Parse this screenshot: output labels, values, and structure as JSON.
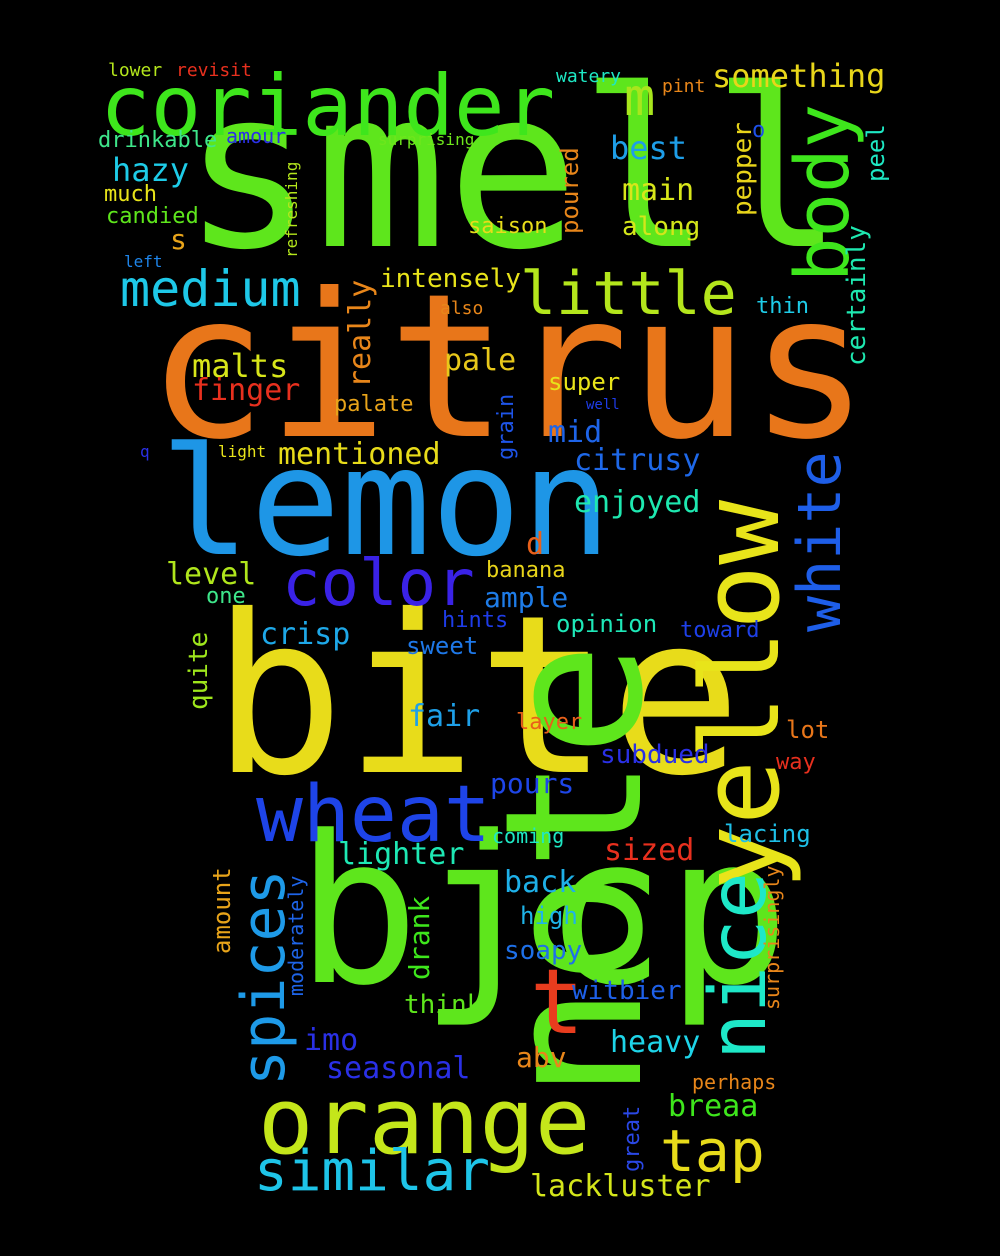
{
  "words": [
    {
      "t": "smell",
      "c": "#5ee61c"
    },
    {
      "t": "citrus",
      "c": "#e8761a"
    },
    {
      "t": "lemon",
      "c": "#1e96e6"
    },
    {
      "t": "bite",
      "c": "#e8dc1a"
    },
    {
      "t": "bjcp",
      "c": "#5ee61c"
    },
    {
      "t": "note",
      "c": "#5ee61c"
    },
    {
      "t": "yellow",
      "c": "#e8e41a"
    },
    {
      "t": "coriander",
      "c": "#3ee61c"
    },
    {
      "t": "orange",
      "c": "#c4e61a"
    },
    {
      "t": "wheat",
      "c": "#1e44e8"
    },
    {
      "t": "color",
      "c": "#3a22e6"
    },
    {
      "t": "medium",
      "c": "#1ec8e8"
    },
    {
      "t": "little",
      "c": "#b4e61c"
    },
    {
      "t": "body",
      "c": "#3ee61c"
    },
    {
      "t": "white",
      "c": "#1e5ee8"
    },
    {
      "t": "nice",
      "c": "#1ee8c8"
    },
    {
      "t": "spices",
      "c": "#1e9ae8"
    },
    {
      "t": "similar",
      "c": "#1ec4e8"
    },
    {
      "t": "tap",
      "c": "#e8dc1a"
    },
    {
      "t": "t",
      "c": "#e83c1e"
    },
    {
      "t": "m",
      "c": "#a8e61c"
    },
    {
      "t": "something",
      "c": "#e8d61a"
    },
    {
      "t": "best",
      "c": "#1e9ee8"
    },
    {
      "t": "main",
      "c": "#d8e61a"
    },
    {
      "t": "along",
      "c": "#d4e61a"
    },
    {
      "t": "hazy",
      "c": "#1ecce8"
    },
    {
      "t": "malts",
      "c": "#d8e61a"
    },
    {
      "t": "finger",
      "c": "#e8301e"
    },
    {
      "t": "really",
      "c": "#e8861a"
    },
    {
      "t": "intensely",
      "c": "#e8e41a"
    },
    {
      "t": "pale",
      "c": "#e8c81a"
    },
    {
      "t": "palate",
      "c": "#e8a41a"
    },
    {
      "t": "mentioned",
      "c": "#e8dc1a"
    },
    {
      "t": "super",
      "c": "#e8e41a"
    },
    {
      "t": "mid",
      "c": "#1e64e8"
    },
    {
      "t": "citrusy",
      "c": "#1e68e8"
    },
    {
      "t": "enjoyed",
      "c": "#1ee8b0"
    },
    {
      "t": "level",
      "c": "#b0e61c"
    },
    {
      "t": "one",
      "c": "#3ee68a"
    },
    {
      "t": "ample",
      "c": "#1e7ce8"
    },
    {
      "t": "banana",
      "c": "#e8d41a"
    },
    {
      "t": "crisp",
      "c": "#1ea8e8"
    },
    {
      "t": "sweet",
      "c": "#1e78e8"
    },
    {
      "t": "opinion",
      "c": "#1ee8b8"
    },
    {
      "t": "toward",
      "c": "#1e40e8"
    },
    {
      "t": "hints",
      "c": "#1e3ce8"
    },
    {
      "t": "quite",
      "c": "#9ee61c"
    },
    {
      "t": "fair",
      "c": "#1ea0e8"
    },
    {
      "t": "layer",
      "c": "#e8601a"
    },
    {
      "t": "lot",
      "c": "#e8761a"
    },
    {
      "t": "way",
      "c": "#e8301e"
    },
    {
      "t": "subdued",
      "c": "#2a30e6"
    },
    {
      "t": "pours",
      "c": "#1e46e8"
    },
    {
      "t": "lighter",
      "c": "#1ee8b4"
    },
    {
      "t": "sized",
      "c": "#e8301e"
    },
    {
      "t": "coming",
      "c": "#1ee8c4"
    },
    {
      "t": "lacing",
      "c": "#1ec0e8"
    },
    {
      "t": "back",
      "c": "#1eb0e8"
    },
    {
      "t": "high",
      "c": "#1eb4e8"
    },
    {
      "t": "soapy",
      "c": "#1e70e8"
    },
    {
      "t": "witbier",
      "c": "#1e60e8"
    },
    {
      "t": "heavy",
      "c": "#1ed4e8"
    },
    {
      "t": "think",
      "c": "#5ee61c"
    },
    {
      "t": "drank",
      "c": "#3ee61c"
    },
    {
      "t": "imo",
      "c": "#2a30e6"
    },
    {
      "t": "seasonal",
      "c": "#2a30e6"
    },
    {
      "t": "abv",
      "c": "#e8861a"
    },
    {
      "t": "breaa",
      "c": "#3ee61c"
    },
    {
      "t": "perhaps",
      "c": "#e8861a"
    },
    {
      "t": "great",
      "c": "#2a48e6"
    },
    {
      "t": "lackluster",
      "c": "#d4e61a"
    },
    {
      "t": "amount",
      "c": "#e8a41a"
    },
    {
      "t": "moderately",
      "c": "#1e64e8"
    },
    {
      "t": "surprisingly",
      "c": "#e8861a"
    },
    {
      "t": "lower",
      "c": "#b4e61c"
    },
    {
      "t": "revisit",
      "c": "#e8301e"
    },
    {
      "t": "watery",
      "c": "#1ee8c4"
    },
    {
      "t": "pint",
      "c": "#e8861a"
    },
    {
      "t": "drinkable",
      "c": "#3ee68a"
    },
    {
      "t": "amour",
      "c": "#2a30e6"
    },
    {
      "t": "surprising",
      "c": "#6ee61c"
    },
    {
      "t": "refreshing",
      "c": "#b4e61c"
    },
    {
      "t": "much",
      "c": "#e8e41a"
    },
    {
      "t": "candied",
      "c": "#5ee61c"
    },
    {
      "t": "s",
      "c": "#e8a41a"
    },
    {
      "t": "left",
      "c": "#1e84e8"
    },
    {
      "t": "saison",
      "c": "#e8dc1a"
    },
    {
      "t": "poured",
      "c": "#e8861a"
    },
    {
      "t": "pepper",
      "c": "#e8d41a"
    },
    {
      "t": "o",
      "c": "#1e50e8"
    },
    {
      "t": "certainly",
      "c": "#1ee8b0"
    },
    {
      "t": "peel",
      "c": "#1ee8c4"
    },
    {
      "t": "also",
      "c": "#e8861a"
    },
    {
      "t": "thin",
      "c": "#1ecce8"
    },
    {
      "t": "grain",
      "c": "#1e54e8"
    },
    {
      "t": "well",
      "c": "#1e3ce8"
    },
    {
      "t": "light",
      "c": "#e8e41a"
    },
    {
      "t": "q",
      "c": "#2a30e6"
    },
    {
      "t": "d",
      "c": "#e8601a"
    }
  ]
}
